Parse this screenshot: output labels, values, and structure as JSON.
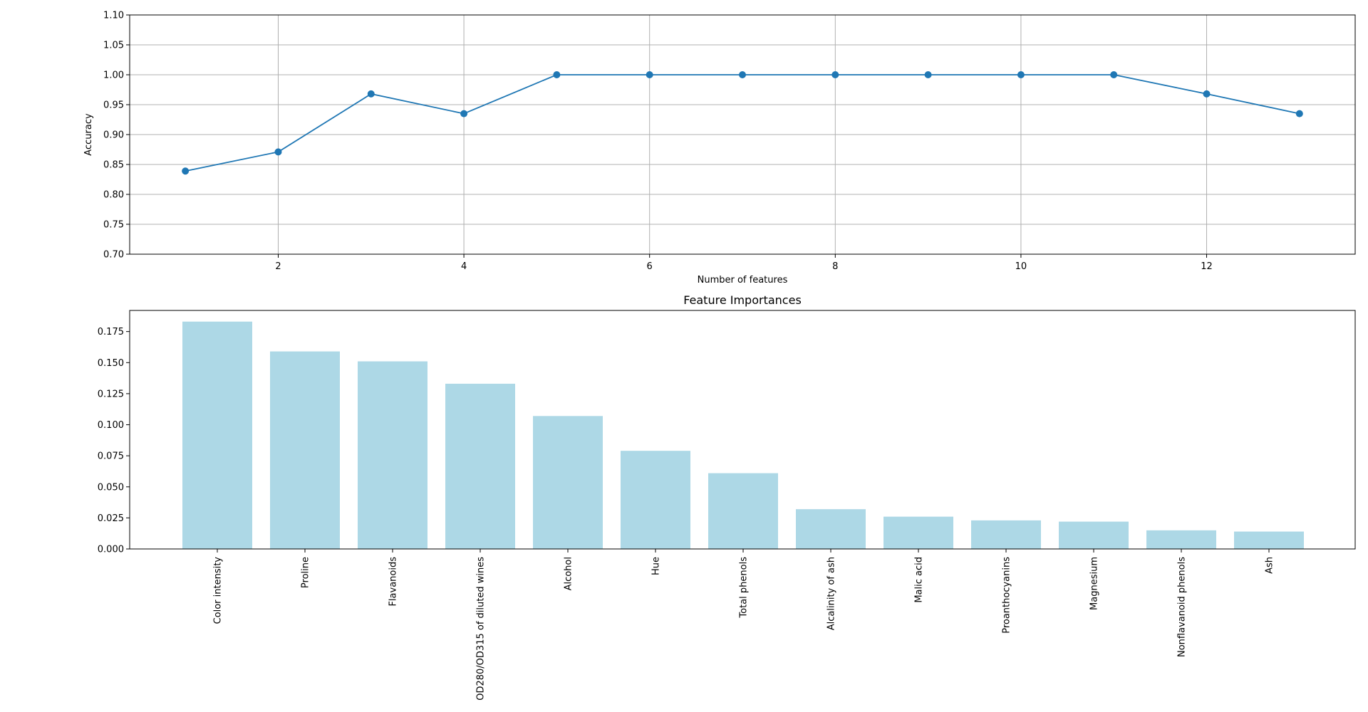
{
  "chart_data": [
    {
      "type": "line",
      "title": "",
      "xlabel": "Number of features",
      "ylabel": "Accuracy",
      "x": [
        1,
        2,
        3,
        4,
        5,
        6,
        7,
        8,
        9,
        10,
        11,
        12,
        13
      ],
      "y": [
        0.839,
        0.871,
        0.968,
        0.935,
        1.0,
        1.0,
        1.0,
        1.0,
        1.0,
        1.0,
        1.0,
        0.968,
        0.935
      ],
      "xlim": [
        0.4,
        13.6
      ],
      "ylim": [
        0.7,
        1.1
      ],
      "xticks": [
        2,
        4,
        6,
        8,
        10,
        12
      ],
      "yticks": [
        "0.70",
        "0.75",
        "0.80",
        "0.85",
        "0.90",
        "0.95",
        "1.00",
        "1.05",
        "1.10"
      ],
      "grid": true,
      "color": "#1f77b4"
    },
    {
      "type": "bar",
      "title": "Feature Importances",
      "xlabel": "",
      "ylabel": "",
      "categories": [
        "Color intensity",
        "Proline",
        "Flavanoids",
        "OD280/OD315 of diluted wines",
        "Alcohol",
        "Hue",
        "Total phenols",
        "Alcalinity of ash",
        "Malic acid",
        "Proanthocyanins",
        "Magnesium",
        "Nonflavanoid phenols",
        "Ash"
      ],
      "values": [
        0.183,
        0.159,
        0.151,
        0.133,
        0.107,
        0.079,
        0.061,
        0.032,
        0.026,
        0.023,
        0.022,
        0.015,
        0.014
      ],
      "ylim": [
        0,
        0.192
      ],
      "yticks": [
        "0.000",
        "0.025",
        "0.050",
        "0.075",
        "0.100",
        "0.125",
        "0.150",
        "0.175"
      ],
      "grid": false,
      "color": "#add8e6"
    }
  ]
}
